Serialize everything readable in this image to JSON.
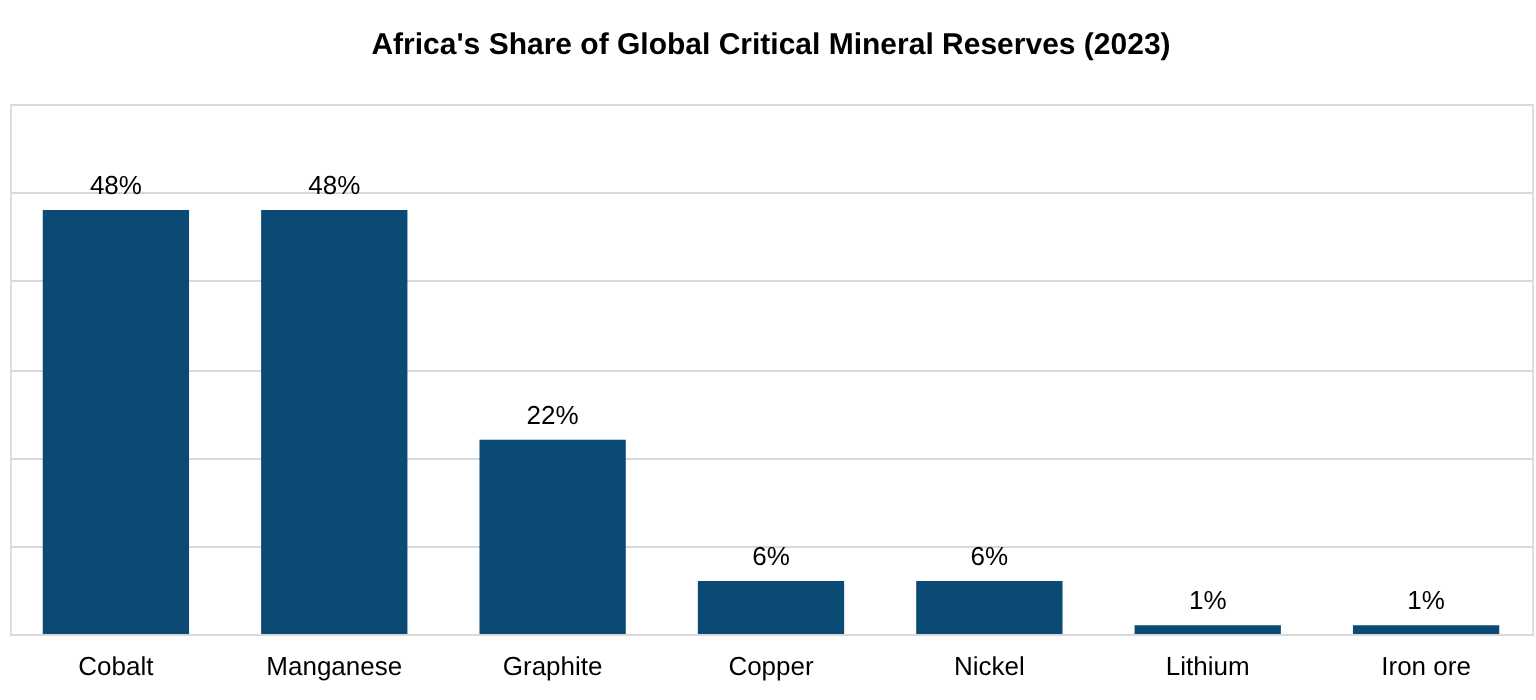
{
  "chart_data": {
    "type": "bar",
    "title": "Africa's Share of Global Critical Mineral Reserves (2023)",
    "categories": [
      "Cobalt",
      "Manganese",
      "Graphite",
      "Copper",
      "Nickel",
      "Lithium",
      "Iron ore"
    ],
    "values": [
      48,
      48,
      22,
      6,
      6,
      1,
      1
    ],
    "value_labels": [
      "48%",
      "48%",
      "22%",
      "6%",
      "6%",
      "1%",
      "1%"
    ],
    "color": "#0b4a75",
    "ylim": [
      0,
      60
    ],
    "yticks": [
      {
        "value": 0,
        "label": null
      },
      {
        "value": 10,
        "label": null
      },
      {
        "value": 20,
        "label": null
      },
      {
        "value": 30,
        "label": null
      },
      {
        "value": 40,
        "label": null
      },
      {
        "value": 50,
        "label": null
      },
      {
        "value": 60,
        "label": null
      }
    ],
    "grid": "y",
    "tick_labels": "x"
  }
}
